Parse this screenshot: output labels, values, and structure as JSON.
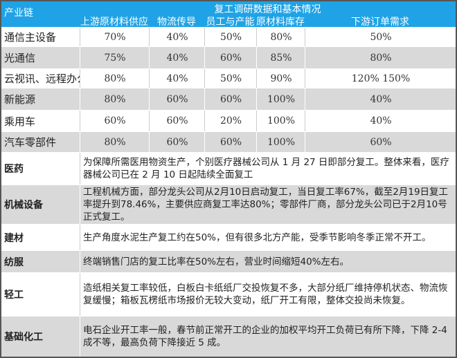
{
  "header": {
    "first_col": "产业链",
    "title": "复工调研数据和基本情况",
    "columns": [
      "上游原材料供应",
      "物流传导",
      "员工与产能",
      "原材料库存",
      "下游订单需求"
    ]
  },
  "rows": [
    {
      "label": "通信主设备",
      "values": [
        "70%",
        "40%",
        "50%",
        "80%",
        "50%"
      ]
    },
    {
      "label": "光通信",
      "values": [
        "75%",
        "40%",
        "60%",
        "85%",
        "80%"
      ]
    },
    {
      "label": "云视讯、远程办公",
      "values": [
        "80%",
        "40%",
        "50%",
        "90%",
        "120% 150%"
      ]
    },
    {
      "label": "新能源",
      "values": [
        "80%",
        "60%",
        "60%",
        "100%",
        "40%"
      ]
    },
    {
      "label": "乘用车",
      "values": [
        "60%",
        "60%",
        "20%",
        "100%",
        "40%"
      ]
    },
    {
      "label": "汽车零部件",
      "values": [
        "80%",
        "60%",
        "60%",
        "100%",
        "60%"
      ]
    }
  ],
  "notes": [
    {
      "label": "医药",
      "text": "为保障所需医用物资生产，个别医疗器械公司从 1 月 27 日即部分复工。整体来看，医疗器械公司已在 2 月 10 日起陆续全面复工"
    },
    {
      "label": "机械设备",
      "text": "工程机械方面，部分龙头公司从2月10日启动复工，当日复工率67%，截至2月19日复工率提升到78.46%，主要供应商复工率达80%；零部件厂商，部分龙头公司已于2月10号正式复工。"
    },
    {
      "label": "建材",
      "text": "生产角度水泥生产复工约在50%，但有很多北方产能，受季节影响冬季正常不开工。"
    },
    {
      "label": "纺服",
      "text": "终端销售门店的复工比率在50%左右，营业时间缩短40%左右。"
    },
    {
      "label": "轻工",
      "text": "造纸相关复工率较低，白板白卡纸纸厂交投恢复不多，大部分纸厂维持停机状态、物流恢复缓慢；箱板瓦楞纸市场报价无较大变动，纸厂开工有限，整体交投尚未恢复。"
    },
    {
      "label": "基础化工",
      "text": "电石企业开工率一般，春节前正常开工的企业的加权平均开工负荷已有所下降，下降 2-4 成不等，最高负荷下降接近 5 成。"
    }
  ],
  "colors": {
    "header_bg": "#1fa3e6",
    "alt_row": "#d9d9d9"
  }
}
